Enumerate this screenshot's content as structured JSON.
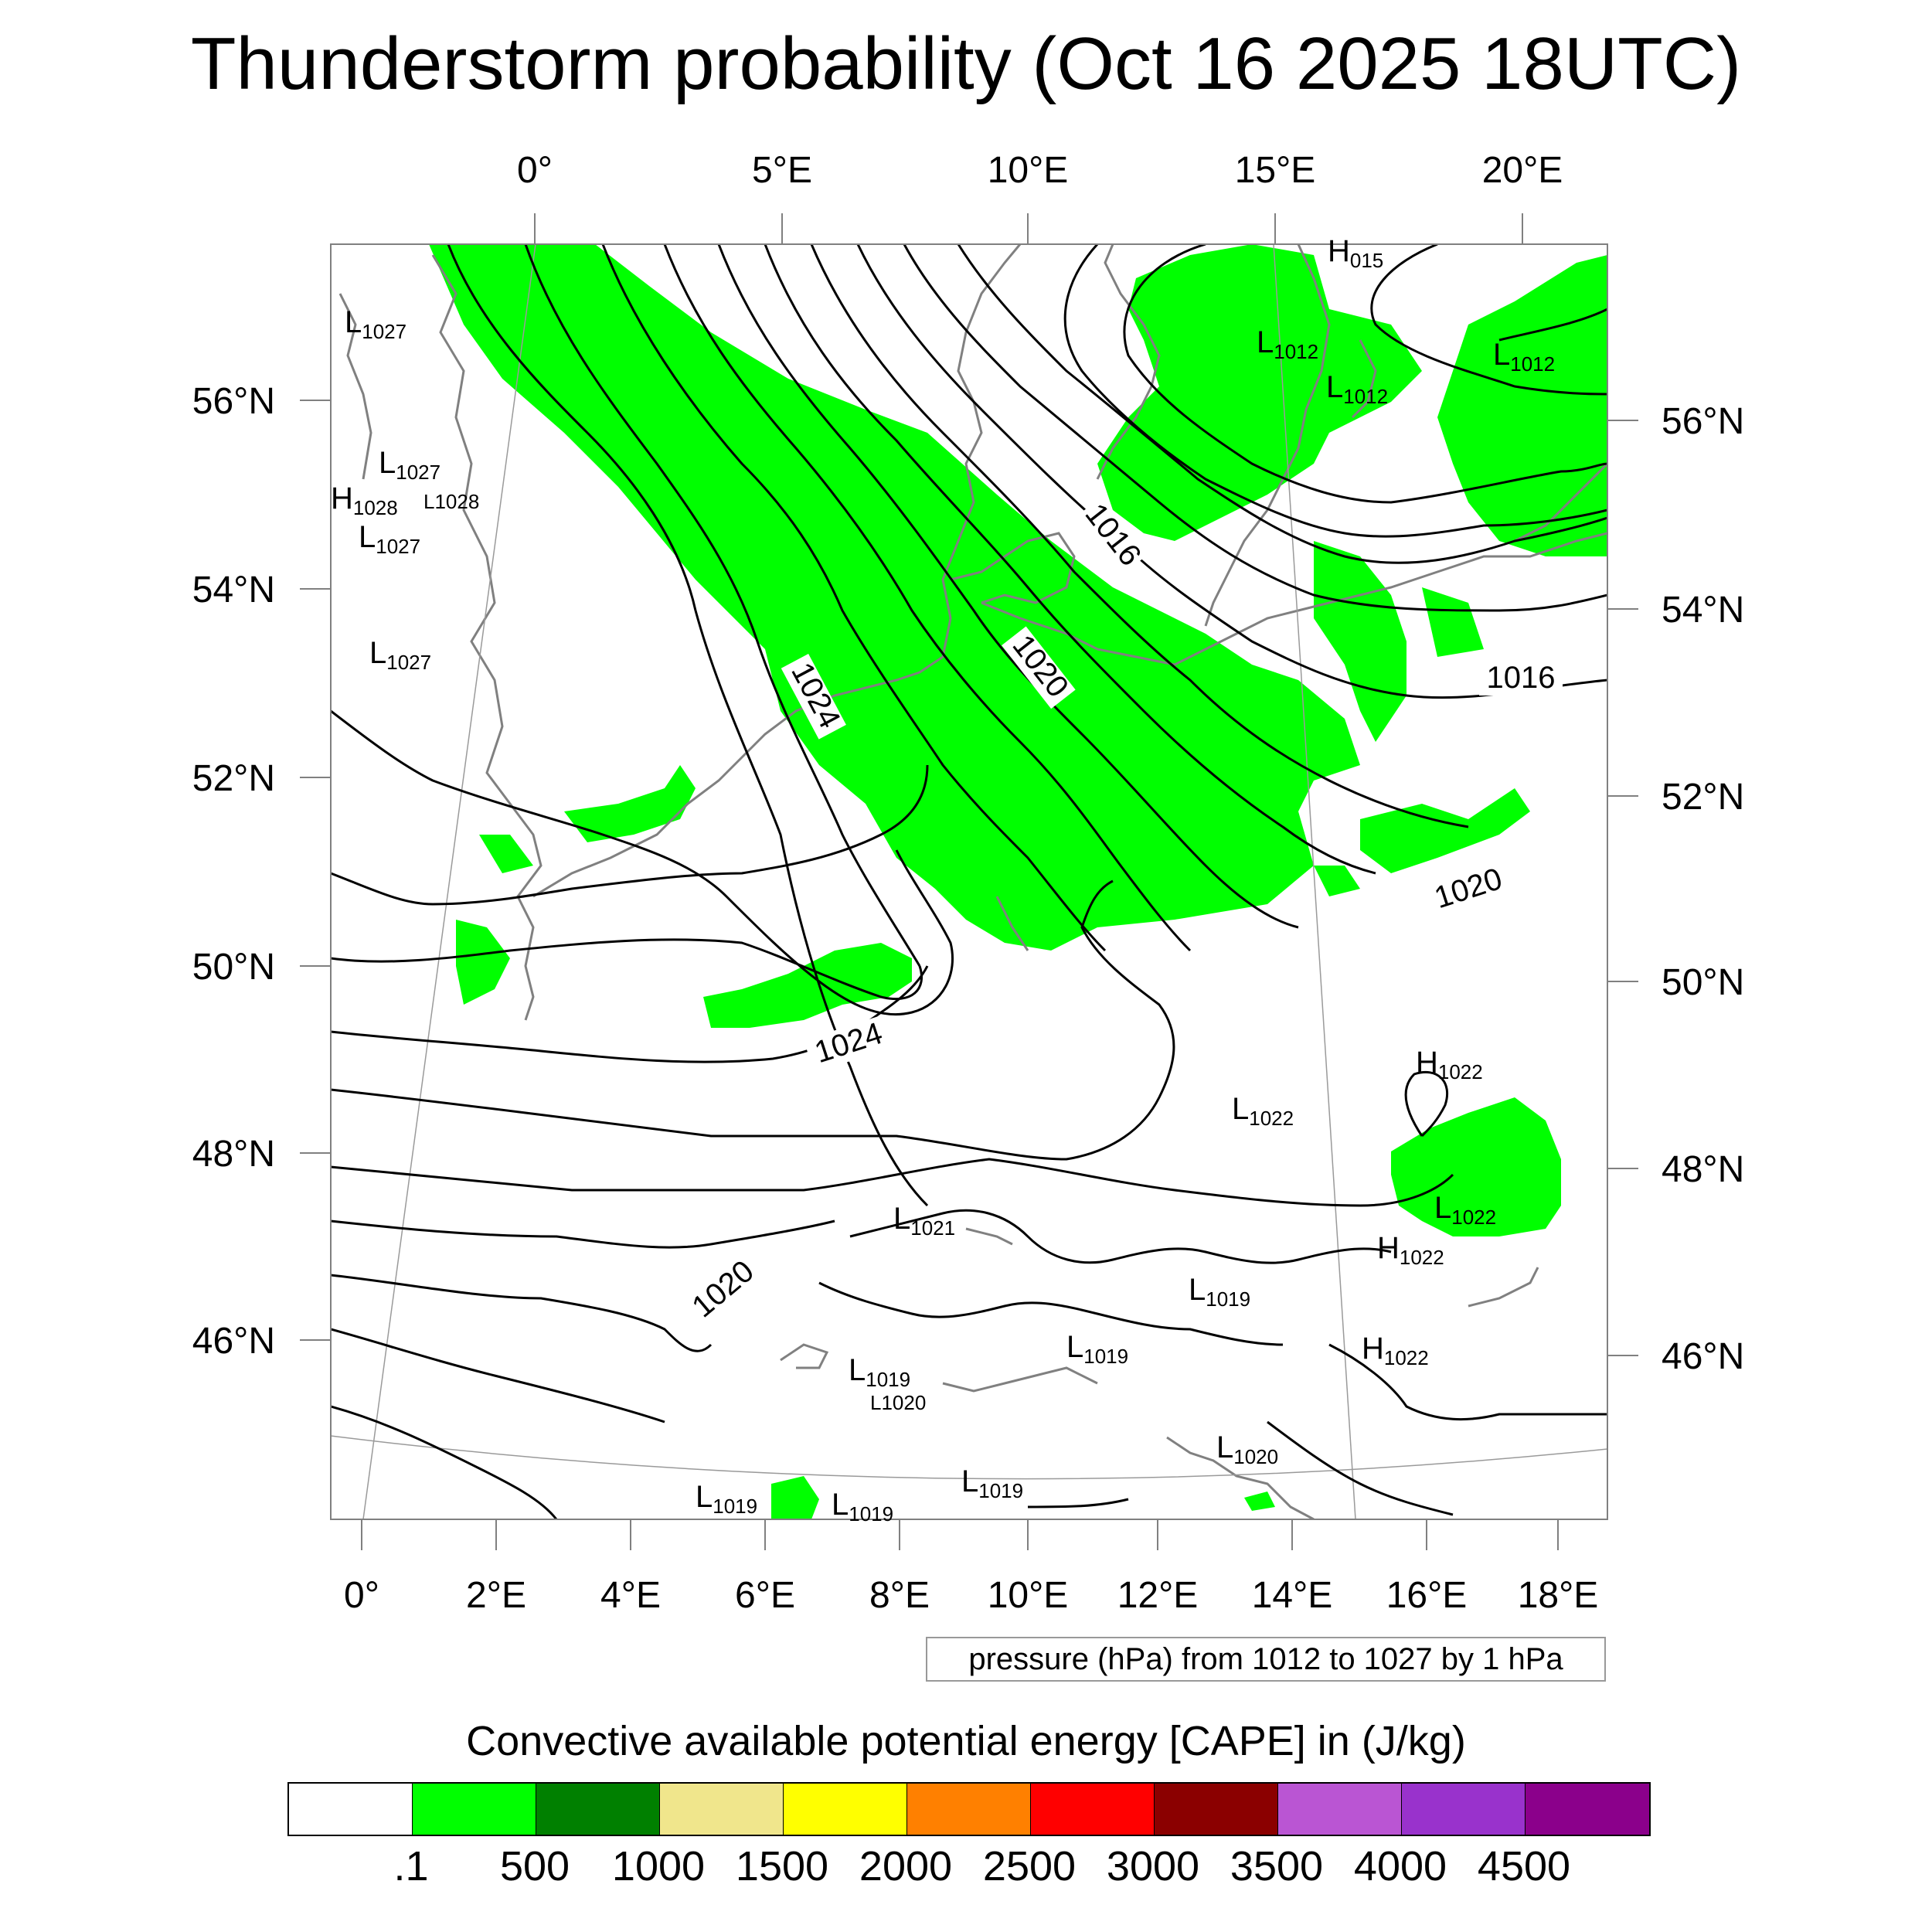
{
  "title": "Thunderstorm probability (Oct 16 2025 18UTC)",
  "top_lon_labels": [
    "0°",
    "5°E",
    "10°E",
    "15°E",
    "20°E"
  ],
  "bottom_lon_labels": [
    "0°",
    "2°E",
    "4°E",
    "6°E",
    "8°E",
    "10°E",
    "12°E",
    "14°E",
    "16°E",
    "18°E"
  ],
  "left_lat_labels": [
    "56°N",
    "54°N",
    "52°N",
    "50°N",
    "48°N",
    "46°N"
  ],
  "right_lat_labels": [
    "56°N",
    "54°N",
    "52°N",
    "50°N",
    "48°N",
    "46°N"
  ],
  "isobar_labels": [
    "1016",
    "1020",
    "1024",
    "1016",
    "1020",
    "1024",
    "1020"
  ],
  "pressure_centers": [
    {
      "type": "H",
      "value": "015"
    },
    {
      "type": "L",
      "value": "1027"
    },
    {
      "type": "L",
      "value": "1012"
    },
    {
      "type": "L",
      "value": "1012"
    },
    {
      "type": "L",
      "value": "1012"
    },
    {
      "type": "L",
      "value": "1027"
    },
    {
      "type": "H",
      "value": "1028"
    },
    {
      "type": "L",
      "value": "1028"
    },
    {
      "type": "L",
      "value": "1027"
    },
    {
      "type": "L",
      "value": "1027"
    },
    {
      "type": "H",
      "value": "1022"
    },
    {
      "type": "L",
      "value": "1022"
    },
    {
      "type": "L",
      "value": "1022"
    },
    {
      "type": "L",
      "value": "1021"
    },
    {
      "type": "H",
      "value": "1022"
    },
    {
      "type": "L",
      "value": "1019"
    },
    {
      "type": "L",
      "value": "1019"
    },
    {
      "type": "H",
      "value": "1022"
    },
    {
      "type": "L",
      "value": "1019"
    },
    {
      "type": "L",
      "value": "1020"
    },
    {
      "type": "L",
      "value": "1020"
    },
    {
      "type": "L",
      "value": "1019"
    },
    {
      "type": "L",
      "value": "1019"
    },
    {
      "type": "L",
      "value": "1019"
    }
  ],
  "info_box": "pressure (hPa) from 1012 to 1027 by 1 hPa",
  "legend": {
    "title": "Convective available potential energy [CAPE] in (J/kg)",
    "colors": [
      "#ffffff",
      "#00ff00",
      "#008000",
      "#f0e68c",
      "#ffff00",
      "#ff8000",
      "#ff0000",
      "#8b0000",
      "#ba55d3",
      "#9932cc",
      "#8b008b"
    ],
    "labels": [
      ".1",
      "500",
      "1000",
      "1500",
      "2000",
      "2500",
      "3000",
      "3500",
      "4000",
      "4500"
    ]
  },
  "colors": {
    "cape_green": "#00ff00",
    "coastline": "#808080",
    "isobar": "#000000"
  }
}
